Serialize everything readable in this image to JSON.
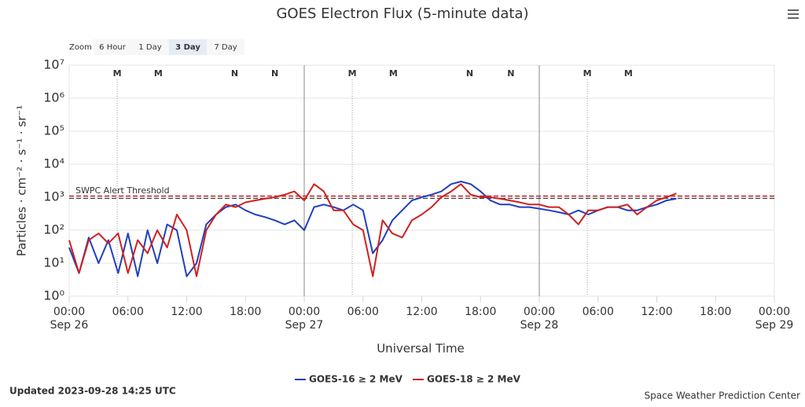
{
  "chart_data": {
    "type": "line",
    "title": "GOES Electron Flux (5-minute data)",
    "xlabel": "Universal Time",
    "ylabel": "Particles · cm⁻² · s⁻¹ · sr⁻¹",
    "y_scale": "log",
    "grid": true,
    "zoom": {
      "label": "Zoom",
      "options": [
        "6 Hour",
        "1 Day",
        "3 Day",
        "7 Day"
      ],
      "selected": 2
    },
    "x": [
      0,
      1,
      2,
      3,
      4,
      5,
      6,
      7,
      8,
      9,
      10,
      11,
      12,
      13,
      14,
      15,
      16,
      17,
      18,
      19,
      20,
      21,
      22,
      23,
      24,
      25,
      26,
      27,
      28,
      29,
      30,
      31,
      32,
      33,
      34,
      35,
      36,
      37,
      38,
      39,
      40,
      41,
      42,
      43,
      44,
      45,
      46,
      47,
      48,
      49,
      50,
      51,
      52,
      53,
      54,
      55,
      56,
      57,
      58,
      59,
      60,
      61,
      62
    ],
    "xlim": [
      0,
      72
    ],
    "xticks": [
      {
        "value": 0,
        "label": "00:00"
      },
      {
        "value": 6,
        "label": "06:00"
      },
      {
        "value": 12,
        "label": "12:00"
      },
      {
        "value": 18,
        "label": "18:00"
      },
      {
        "value": 24,
        "label": "00:00"
      },
      {
        "value": 30,
        "label": "06:00"
      },
      {
        "value": 36,
        "label": "12:00"
      },
      {
        "value": 42,
        "label": "18:00"
      },
      {
        "value": 48,
        "label": "00:00"
      },
      {
        "value": 54,
        "label": "06:00"
      },
      {
        "value": 60,
        "label": "12:00"
      },
      {
        "value": 66,
        "label": "18:00"
      },
      {
        "value": 72,
        "label": "00:00"
      }
    ],
    "xtick_dates": [
      {
        "value": 0,
        "label": "Sep 26"
      },
      {
        "value": 24,
        "label": "Sep 27"
      },
      {
        "value": 48,
        "label": "Sep 28"
      },
      {
        "value": 72,
        "label": "Sep 29"
      }
    ],
    "ylim": [
      1,
      10000000
    ],
    "yticks": [
      {
        "value": 1,
        "label": "10⁰"
      },
      {
        "value": 10,
        "label": "10¹"
      },
      {
        "value": 100,
        "label": "10²"
      },
      {
        "value": 1000,
        "label": "10³"
      },
      {
        "value": 10000,
        "label": "10⁴"
      },
      {
        "value": 100000,
        "label": "10⁵"
      },
      {
        "value": 1000000,
        "label": "10⁶"
      },
      {
        "value": 10000000,
        "label": "10⁷"
      }
    ],
    "threshold": {
      "label": "SWPC Alert Threshold",
      "value": 1000,
      "color": "#c0282d"
    },
    "markers": [
      {
        "label": "M",
        "x": 4.9,
        "color": "#1f3fbf",
        "dotted_line": true
      },
      {
        "label": "M",
        "x": 9.1,
        "color": "#d02020"
      },
      {
        "label": "N",
        "x": 16.9,
        "color": "#1f3fbf"
      },
      {
        "label": "N",
        "x": 21.0,
        "color": "#d02020"
      },
      {
        "label": "M",
        "x": 28.9,
        "color": "#1f3fbf",
        "dotted_line": true
      },
      {
        "label": "M",
        "x": 33.1,
        "color": "#d02020"
      },
      {
        "label": "N",
        "x": 40.9,
        "color": "#1f3fbf"
      },
      {
        "label": "N",
        "x": 45.1,
        "color": "#d02020"
      },
      {
        "label": "M",
        "x": 52.9,
        "color": "#1f3fbf",
        "dotted_line": true
      },
      {
        "label": "M",
        "x": 57.1,
        "color": "#d02020"
      }
    ],
    "series": [
      {
        "name": "GOES-16 ≥ 2 MeV",
        "color": "#1f3fbf",
        "values": [
          30,
          5,
          60,
          10,
          50,
          5,
          80,
          4,
          100,
          10,
          150,
          100,
          4,
          10,
          150,
          300,
          500,
          600,
          400,
          300,
          250,
          200,
          150,
          200,
          100,
          500,
          600,
          500,
          400,
          600,
          400,
          20,
          50,
          200,
          400,
          800,
          1000,
          1200,
          1500,
          2500,
          3000,
          2500,
          1500,
          800,
          600,
          600,
          500,
          500,
          450,
          400,
          350,
          300,
          400,
          300,
          400,
          500,
          500,
          400,
          400,
          500,
          600,
          800,
          900
        ]
      },
      {
        "name": "GOES-18 ≥ 2 MeV",
        "color": "#d02020",
        "values": [
          50,
          5,
          50,
          80,
          40,
          80,
          5,
          50,
          20,
          100,
          30,
          300,
          100,
          4,
          100,
          300,
          600,
          500,
          700,
          800,
          900,
          1000,
          1200,
          1500,
          800,
          2500,
          1500,
          400,
          400,
          150,
          100,
          4,
          200,
          80,
          60,
          200,
          300,
          500,
          1000,
          1500,
          2500,
          1200,
          1000,
          1000,
          900,
          800,
          700,
          600,
          600,
          500,
          500,
          300,
          150,
          400,
          400,
          500,
          500,
          600,
          300,
          500,
          800,
          1000,
          1300
        ]
      }
    ],
    "updated": "Updated 2023-09-28 14:25 UTC",
    "credit": "Space Weather Prediction Center"
  }
}
